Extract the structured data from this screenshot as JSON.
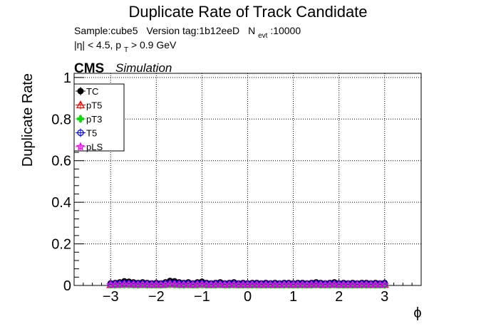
{
  "chart_data": {
    "type": "scatter",
    "title": "Duplicate Rate of Track Candidate",
    "subtitle": {
      "sample": "Sample:cube5",
      "version": "Version tag:1b12eeD",
      "nevt_symbol": "N",
      "nevt_sub": "evt",
      "nevt_value": ":10000",
      "cuts_eta": "|η| < 4.5, p",
      "cuts_pt_sub": "T",
      "cuts_pt_rest": " > 0.9 GeV"
    },
    "cms_label": "CMS",
    "sim_label": "Simulation",
    "xlabel": "ϕ",
    "ylabel": "Duplicate Rate",
    "xlim": [
      -3.8,
      3.8
    ],
    "ylim": [
      0,
      1.02
    ],
    "x_ticks": [
      -3,
      -2,
      -1,
      0,
      1,
      2,
      3
    ],
    "x_tick_labels": [
      "−3",
      "−2",
      "−1",
      "0",
      "1",
      "2",
      "3"
    ],
    "y_ticks": [
      0,
      0.2,
      0.4,
      0.6,
      0.8,
      1
    ],
    "y_tick_labels": [
      "0",
      "0.2",
      "0.4",
      "0.6",
      "0.8",
      "1"
    ],
    "grid": true,
    "legend_position": "top-left",
    "x": [
      -3.0,
      -2.9,
      -2.8,
      -2.7,
      -2.6,
      -2.5,
      -2.4,
      -2.3,
      -2.2,
      -2.1,
      -2.0,
      -1.9,
      -1.8,
      -1.7,
      -1.6,
      -1.5,
      -1.4,
      -1.3,
      -1.2,
      -1.1,
      -1.0,
      -0.9,
      -0.8,
      -0.7,
      -0.6,
      -0.5,
      -0.4,
      -0.3,
      -0.2,
      -0.1,
      0.0,
      0.1,
      0.2,
      0.3,
      0.4,
      0.5,
      0.6,
      0.7,
      0.8,
      0.9,
      1.0,
      1.1,
      1.2,
      1.3,
      1.4,
      1.5,
      1.6,
      1.7,
      1.8,
      1.9,
      2.0,
      2.1,
      2.2,
      2.3,
      2.4,
      2.5,
      2.6,
      2.7,
      2.8,
      2.9,
      3.0
    ],
    "series": [
      {
        "name": "TC",
        "color": "#000000",
        "marker": "circle-filled",
        "values": [
          0.01,
          0.012,
          0.015,
          0.02,
          0.018,
          0.015,
          0.012,
          0.015,
          0.012,
          0.01,
          0.012,
          0.01,
          0.015,
          0.022,
          0.02,
          0.015,
          0.012,
          0.015,
          0.01,
          0.015,
          0.018,
          0.012,
          0.01,
          0.012,
          0.015,
          0.01,
          0.012,
          0.015,
          0.01,
          0.012,
          0.01,
          0.012,
          0.012,
          0.01,
          0.012,
          0.01,
          0.012,
          0.01,
          0.012,
          0.012,
          0.01,
          0.012,
          0.012,
          0.01,
          0.012,
          0.015,
          0.012,
          0.01,
          0.012,
          0.015,
          0.01,
          0.012,
          0.01,
          0.012,
          0.01,
          0.012,
          0.012,
          0.01,
          0.012,
          0.01,
          0.012
        ]
      },
      {
        "name": "pT5",
        "color": "#ff0000",
        "marker": "triangle-open",
        "values": [
          0.004,
          0.005,
          0.006,
          0.008,
          0.007,
          0.006,
          0.005,
          0.006,
          0.005,
          0.004,
          0.005,
          0.004,
          0.006,
          0.009,
          0.008,
          0.006,
          0.005,
          0.006,
          0.004,
          0.006,
          0.007,
          0.005,
          0.004,
          0.005,
          0.006,
          0.004,
          0.005,
          0.006,
          0.004,
          0.005,
          0.004,
          0.005,
          0.005,
          0.004,
          0.005,
          0.004,
          0.005,
          0.004,
          0.005,
          0.005,
          0.004,
          0.005,
          0.005,
          0.004,
          0.005,
          0.006,
          0.005,
          0.004,
          0.005,
          0.006,
          0.004,
          0.005,
          0.004,
          0.005,
          0.004,
          0.005,
          0.005,
          0.004,
          0.005,
          0.004,
          0.005
        ]
      },
      {
        "name": "pT3",
        "color": "#00dd00",
        "marker": "cross-open",
        "values": [
          0.002,
          0.002,
          0.003,
          0.003,
          0.003,
          0.002,
          0.002,
          0.003,
          0.002,
          0.002,
          0.002,
          0.002,
          0.003,
          0.004,
          0.003,
          0.002,
          0.002,
          0.003,
          0.002,
          0.002,
          0.003,
          0.002,
          0.002,
          0.002,
          0.003,
          0.002,
          0.002,
          0.003,
          0.002,
          0.002,
          0.002,
          0.002,
          0.002,
          0.002,
          0.002,
          0.002,
          0.002,
          0.002,
          0.002,
          0.002,
          0.002,
          0.002,
          0.002,
          0.002,
          0.002,
          0.003,
          0.002,
          0.002,
          0.002,
          0.003,
          0.002,
          0.002,
          0.002,
          0.002,
          0.002,
          0.002,
          0.002,
          0.002,
          0.002,
          0.002,
          0.002
        ]
      },
      {
        "name": "T5",
        "color": "#0000ff",
        "marker": "circle-open",
        "values": [
          0.006,
          0.007,
          0.008,
          0.01,
          0.009,
          0.008,
          0.007,
          0.008,
          0.007,
          0.006,
          0.007,
          0.006,
          0.008,
          0.011,
          0.01,
          0.008,
          0.007,
          0.008,
          0.006,
          0.008,
          0.009,
          0.007,
          0.006,
          0.007,
          0.008,
          0.006,
          0.007,
          0.008,
          0.006,
          0.007,
          0.006,
          0.007,
          0.007,
          0.006,
          0.007,
          0.006,
          0.007,
          0.006,
          0.007,
          0.007,
          0.006,
          0.007,
          0.007,
          0.006,
          0.007,
          0.008,
          0.007,
          0.006,
          0.007,
          0.008,
          0.006,
          0.007,
          0.006,
          0.007,
          0.006,
          0.007,
          0.007,
          0.006,
          0.007,
          0.006,
          0.007
        ]
      },
      {
        "name": "pLS",
        "color": "#ee00ee",
        "marker": "star-open",
        "values": [
          0.003,
          0.004,
          0.004,
          0.005,
          0.005,
          0.004,
          0.004,
          0.004,
          0.004,
          0.003,
          0.004,
          0.003,
          0.004,
          0.006,
          0.005,
          0.004,
          0.004,
          0.004,
          0.003,
          0.004,
          0.005,
          0.004,
          0.003,
          0.004,
          0.004,
          0.003,
          0.004,
          0.004,
          0.003,
          0.004,
          0.003,
          0.004,
          0.004,
          0.003,
          0.004,
          0.003,
          0.004,
          0.003,
          0.004,
          0.004,
          0.003,
          0.004,
          0.004,
          0.003,
          0.004,
          0.004,
          0.004,
          0.003,
          0.004,
          0.004,
          0.003,
          0.004,
          0.003,
          0.004,
          0.003,
          0.004,
          0.004,
          0.003,
          0.004,
          0.003,
          0.004
        ]
      }
    ]
  }
}
